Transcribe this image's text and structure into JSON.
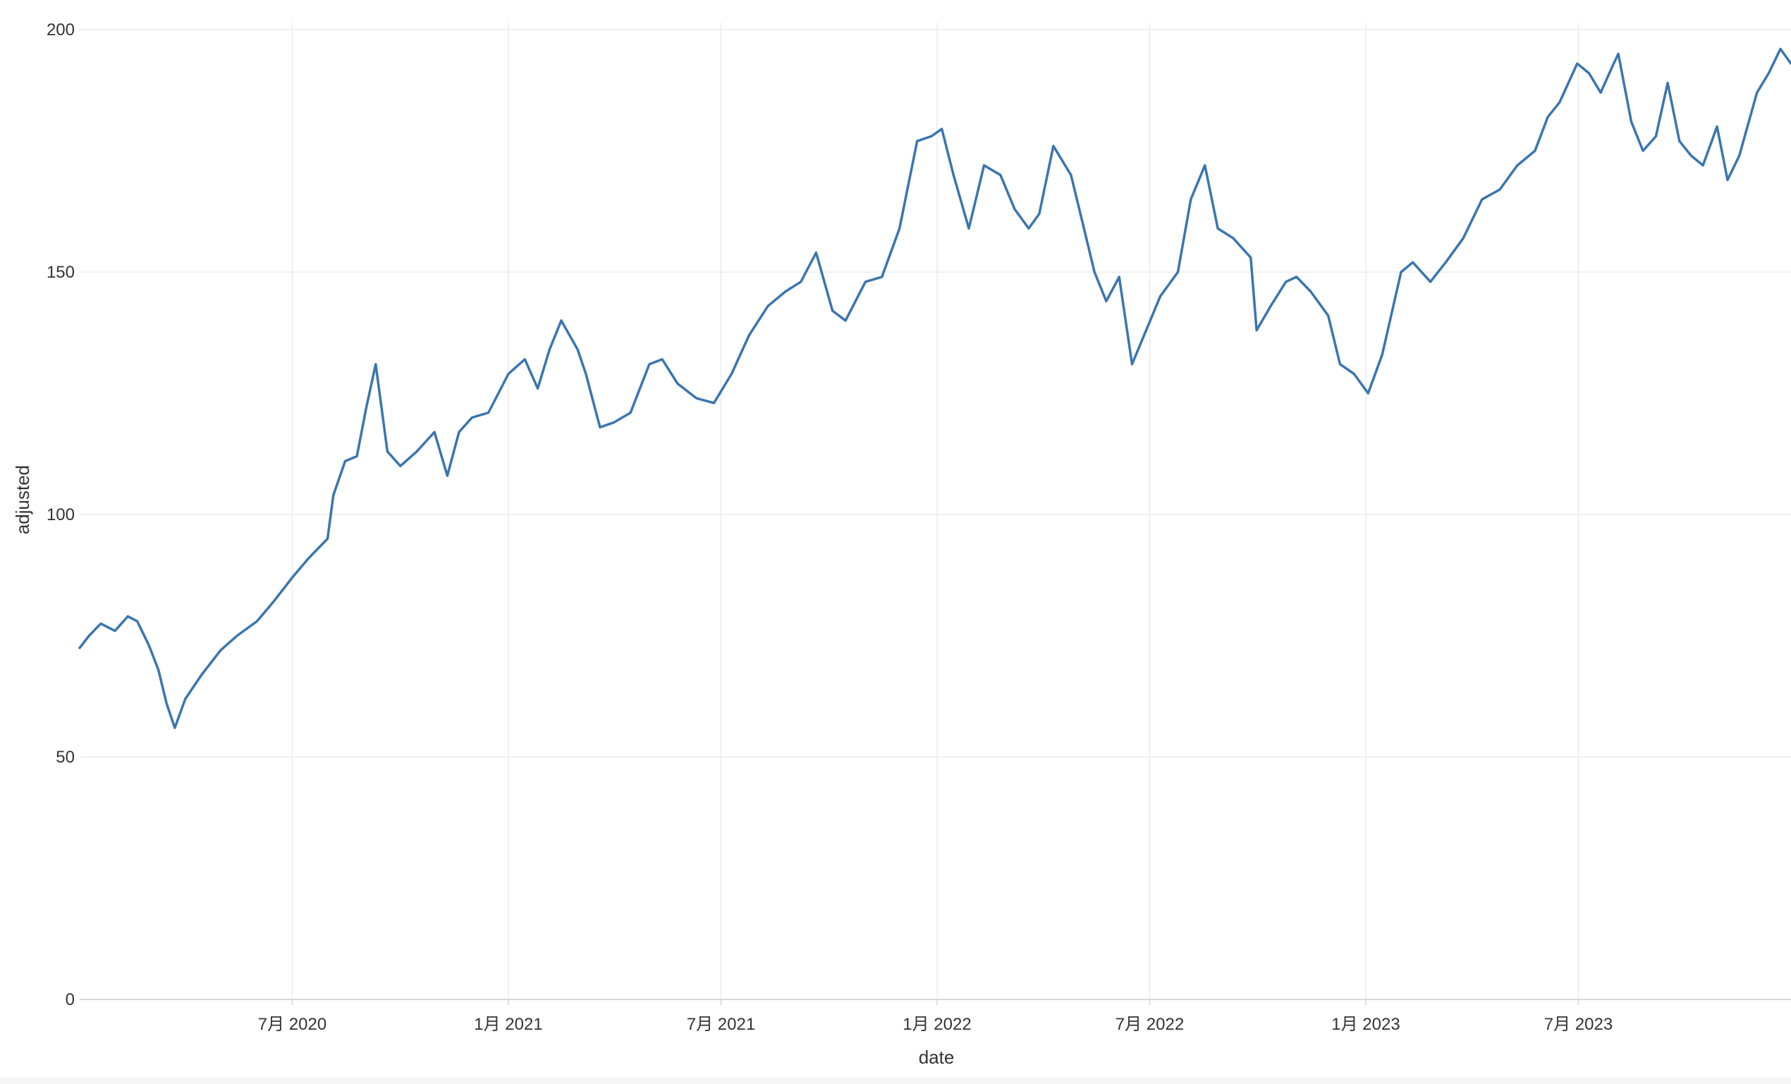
{
  "chart_data": {
    "type": "line",
    "title": "",
    "xlabel": "date",
    "ylabel": "adjusted",
    "ylim": [
      0,
      200
    ],
    "xlim": [
      "2020-01-02",
      "2023-12-29"
    ],
    "grid": true,
    "legend": "none",
    "colors": {
      "line": "#3a75b0",
      "grid": "#ebebeb",
      "axis": "#d6d6d6"
    },
    "y_ticks": [
      {
        "value": 0,
        "label": "0"
      },
      {
        "value": 50,
        "label": "50"
      },
      {
        "value": 100,
        "label": "100"
      },
      {
        "value": 150,
        "label": "150"
      },
      {
        "value": 200,
        "label": "200"
      }
    ],
    "x_ticks": [
      {
        "value": "2020-07-01",
        "label": "7月 2020"
      },
      {
        "value": "2021-01-01",
        "label": "1月 2021"
      },
      {
        "value": "2021-07-01",
        "label": "7月 2021"
      },
      {
        "value": "2022-01-01",
        "label": "1月 2022"
      },
      {
        "value": "2022-07-01",
        "label": "7月 2022"
      },
      {
        "value": "2023-01-01",
        "label": "1月 2023"
      },
      {
        "value": "2023-07-01",
        "label": "7月 2023"
      }
    ],
    "series": [
      {
        "x": [
          "2020-01-02",
          "2020-01-10",
          "2020-01-20",
          "2020-02-01",
          "2020-02-12",
          "2020-02-20",
          "2020-03-01",
          "2020-03-09",
          "2020-03-16",
          "2020-03-23",
          "2020-04-01",
          "2020-04-15",
          "2020-05-01",
          "2020-05-15",
          "2020-06-01",
          "2020-06-15",
          "2020-07-01",
          "2020-07-15",
          "2020-07-31",
          "2020-08-05",
          "2020-08-15",
          "2020-08-25",
          "2020-09-02",
          "2020-09-10",
          "2020-09-20",
          "2020-10-01",
          "2020-10-15",
          "2020-10-30",
          "2020-11-10",
          "2020-11-20",
          "2020-12-01",
          "2020-12-15",
          "2021-01-01",
          "2021-01-15",
          "2021-01-26",
          "2021-02-05",
          "2021-02-15",
          "2021-03-01",
          "2021-03-08",
          "2021-03-20",
          "2021-04-01",
          "2021-04-15",
          "2021-05-01",
          "2021-05-12",
          "2021-05-25",
          "2021-06-10",
          "2021-06-25",
          "2021-07-10",
          "2021-07-25",
          "2021-08-10",
          "2021-08-25",
          "2021-09-07",
          "2021-09-20",
          "2021-10-04",
          "2021-10-15",
          "2021-11-01",
          "2021-11-15",
          "2021-11-30",
          "2021-12-15",
          "2021-12-27",
          "2022-01-05",
          "2022-01-15",
          "2022-01-28",
          "2022-02-10",
          "2022-02-24",
          "2022-03-08",
          "2022-03-20",
          "2022-03-29",
          "2022-04-10",
          "2022-04-25",
          "2022-05-05",
          "2022-05-15",
          "2022-05-25",
          "2022-06-05",
          "2022-06-16",
          "2022-06-28",
          "2022-07-10",
          "2022-07-25",
          "2022-08-05",
          "2022-08-17",
          "2022-08-28",
          "2022-09-10",
          "2022-09-25",
          "2022-09-30",
          "2022-10-12",
          "2022-10-25",
          "2022-11-03",
          "2022-11-15",
          "2022-11-30",
          "2022-12-10",
          "2022-12-22",
          "2023-01-03",
          "2023-01-15",
          "2023-01-31",
          "2023-02-10",
          "2023-02-25",
          "2023-03-10",
          "2023-03-25",
          "2023-04-10",
          "2023-04-25",
          "2023-05-10",
          "2023-05-25",
          "2023-06-05",
          "2023-06-15",
          "2023-06-30",
          "2023-07-10",
          "2023-07-20",
          "2023-07-31",
          "2023-08-04",
          "2023-08-15",
          "2023-08-25",
          "2023-09-05",
          "2023-09-15",
          "2023-09-25",
          "2023-10-05",
          "2023-10-15",
          "2023-10-27",
          "2023-11-05",
          "2023-11-15",
          "2023-11-30",
          "2023-12-10",
          "2023-12-20",
          "2023-12-29"
        ],
        "values": [
          72.5,
          75,
          77.5,
          76,
          79,
          78,
          73,
          68,
          61,
          56,
          62,
          67,
          72,
          75,
          78,
          82,
          87,
          91,
          95,
          104,
          111,
          112,
          122,
          131,
          113,
          110,
          113,
          117,
          108,
          117,
          120,
          121,
          129,
          132,
          126,
          134,
          140,
          134,
          129,
          118,
          119,
          121,
          131,
          132,
          127,
          124,
          123,
          129,
          137,
          143,
          146,
          148,
          154,
          142,
          140,
          148,
          149,
          159,
          177,
          178,
          179.5,
          170,
          159,
          172,
          170,
          163,
          159,
          162,
          176,
          170,
          160,
          150,
          144,
          149,
          131,
          138,
          145,
          150,
          165,
          172,
          159,
          157,
          153,
          138,
          143,
          148,
          149,
          146,
          141,
          131,
          129,
          125,
          133,
          150,
          152,
          148,
          152,
          157,
          165,
          167,
          172,
          175,
          182,
          185,
          193,
          191,
          187,
          193,
          195,
          181,
          175,
          178,
          189,
          177,
          174,
          172,
          180,
          169,
          174,
          187,
          191,
          196,
          193
        ]
      }
    ]
  }
}
